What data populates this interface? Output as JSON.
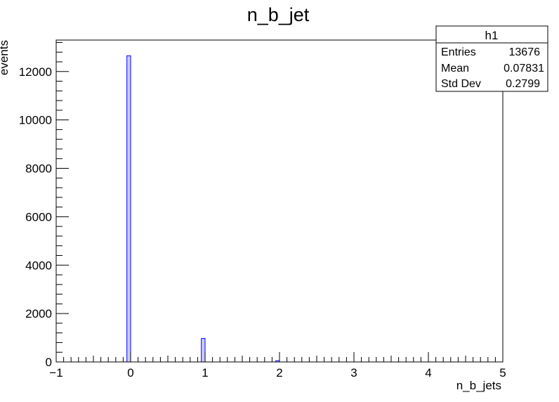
{
  "chart_data": {
    "type": "bar",
    "title": "n_b_jet",
    "xlabel": "n_b_jets",
    "ylabel": "events",
    "xlim": [
      -1,
      5
    ],
    "ylim": [
      0,
      13300
    ],
    "x_ticks": [
      -1,
      0,
      1,
      2,
      3,
      4,
      5
    ],
    "x_tick_labels": [
      "−1",
      "0",
      "1",
      "2",
      "3",
      "4",
      "5"
    ],
    "y_ticks": [
      0,
      2000,
      4000,
      6000,
      8000,
      10000,
      12000
    ],
    "y_tick_labels": [
      "0",
      "2000",
      "4000",
      "6000",
      "8000",
      "10000",
      "12000"
    ],
    "bin_width": 0.05,
    "bins": [
      {
        "x_low": -0.05,
        "x_high": 0.0,
        "value": 12650
      },
      {
        "x_low": 0.95,
        "x_high": 1.0,
        "value": 970
      },
      {
        "x_low": 1.95,
        "x_high": 2.0,
        "value": 50
      }
    ],
    "grid": false,
    "fill_color": "#ccccff",
    "line_color": "#0000ff",
    "stats_box": {
      "title": "h1",
      "rows": [
        {
          "label": "Entries",
          "value": "13676"
        },
        {
          "label": "Mean",
          "value": "0.07831"
        },
        {
          "label": "Std Dev",
          "value": "0.2799"
        }
      ],
      "placement": "top-right"
    }
  }
}
